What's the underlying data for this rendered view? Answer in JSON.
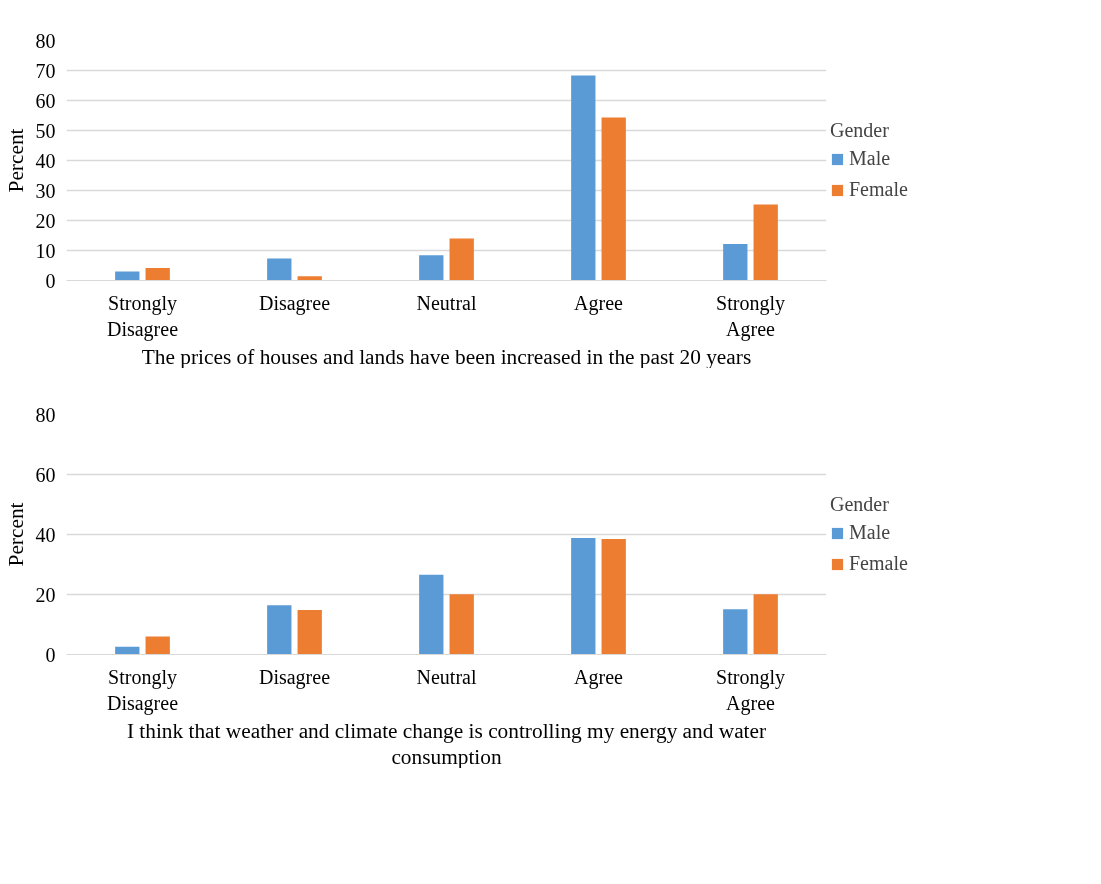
{
  "chart_data": [
    {
      "type": "bar",
      "xlabel": "The prices of houses and lands have been increased in the past 20 years",
      "ylabel": "Percent",
      "legend_title": "Gender",
      "legend": "right",
      "grid": "y",
      "categories": [
        "Strongly Disagree",
        "Disagree",
        "Neutral",
        "Agree",
        "Strongly Agree"
      ],
      "ylim": [
        0,
        80
      ],
      "yticks": [
        0,
        10,
        20,
        30,
        40,
        50,
        60,
        70,
        80
      ],
      "series": [
        {
          "name": "Male",
          "color": "#5b9bd5",
          "values": [
            3.0,
            7.3,
            8.4,
            68.3,
            12.2
          ]
        },
        {
          "name": "Female",
          "color": "#ed7d31",
          "values": [
            4.2,
            1.4,
            14.0,
            54.3,
            25.3
          ]
        }
      ]
    },
    {
      "type": "bar",
      "xlabel": "I think that weather and climate change is controlling my energy and water consumption",
      "ylabel": "Percent",
      "legend_title": "Gender",
      "legend": "right",
      "grid": "y",
      "categories": [
        "Strongly Disagree",
        "Disagree",
        "Neutral",
        "Agree",
        "Strongly Agree"
      ],
      "ylim": [
        0,
        80
      ],
      "yticks": [
        0,
        20,
        40,
        60,
        80
      ],
      "series": [
        {
          "name": "Male",
          "color": "#5b9bd5",
          "values": [
            2.6,
            16.4,
            26.6,
            38.8,
            15.1
          ]
        },
        {
          "name": "Female",
          "color": "#ed7d31",
          "values": [
            6.0,
            14.8,
            20.1,
            38.5,
            20.1
          ]
        }
      ]
    }
  ]
}
